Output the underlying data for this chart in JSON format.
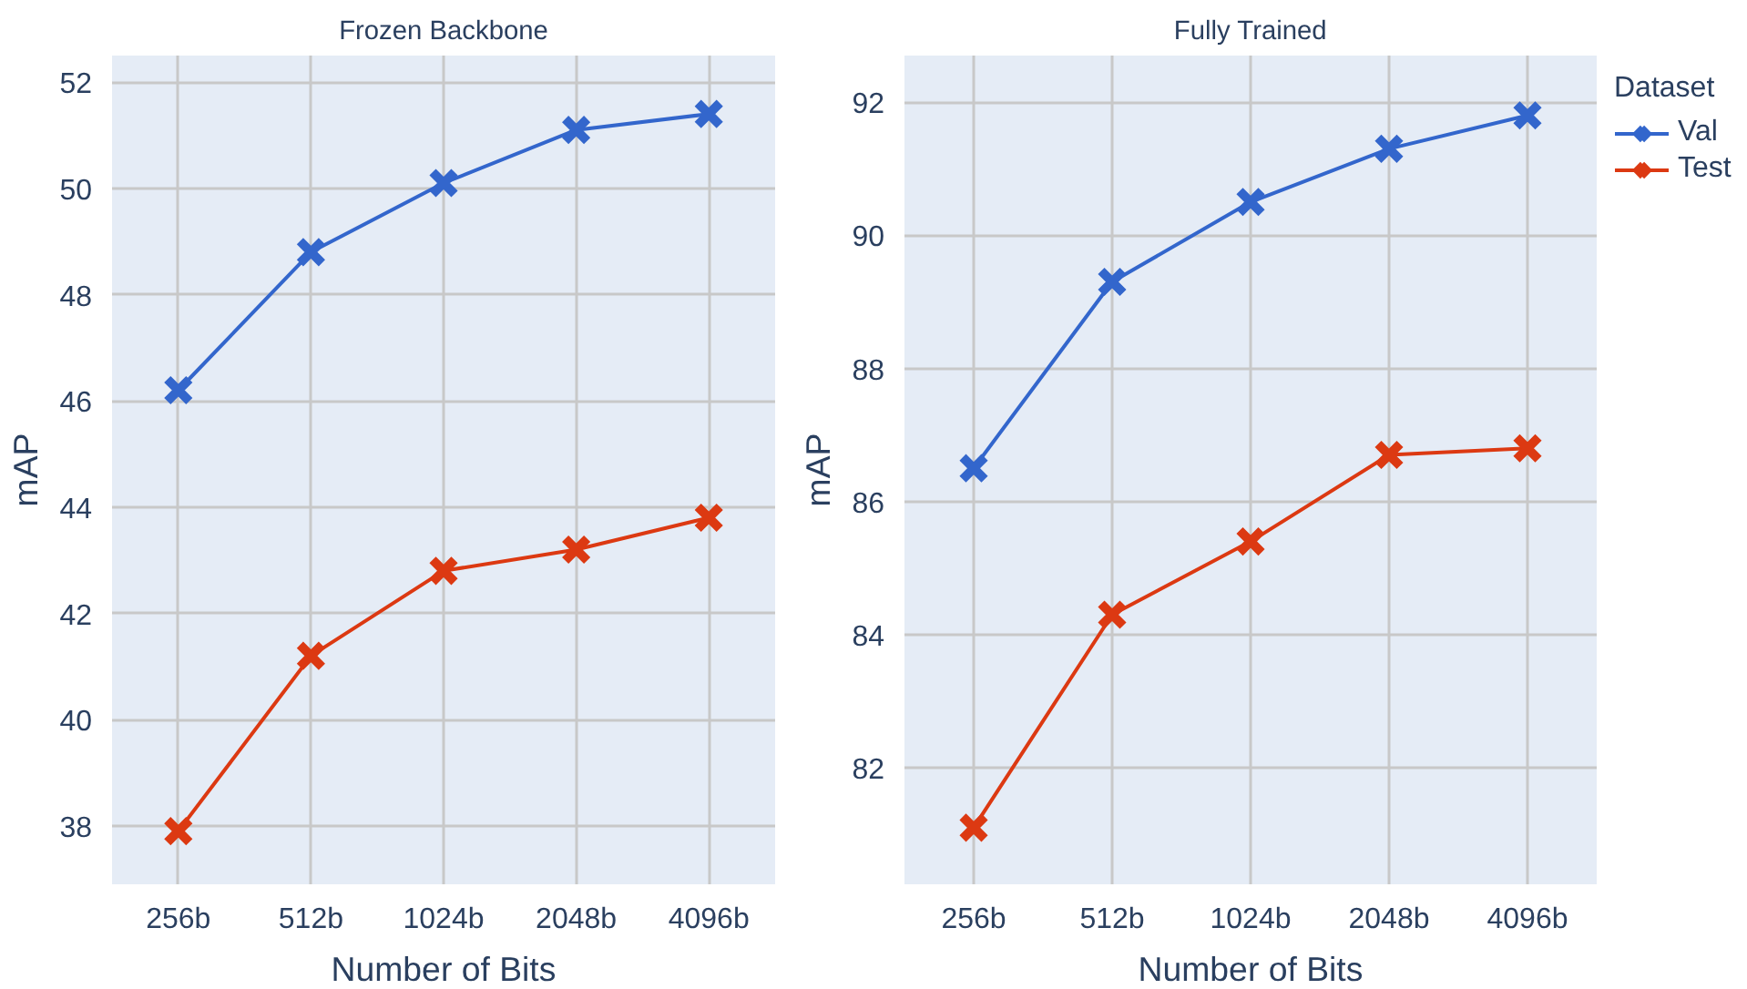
{
  "chart_data": [
    {
      "type": "line",
      "title": "Frozen Backbone",
      "xlabel": "Number of Bits",
      "ylabel": "mAP",
      "categories": [
        "256b",
        "512b",
        "1024b",
        "2048b",
        "4096b"
      ],
      "ylim": [
        36.9,
        52.5
      ],
      "yticks": [
        38,
        40,
        42,
        44,
        46,
        48,
        50,
        52
      ],
      "grid": true,
      "legend": false,
      "marker": "cross",
      "line_style": "solid",
      "series": [
        {
          "color": "#3366cc",
          "values": [
            46.2,
            48.8,
            50.1,
            51.1,
            51.4
          ]
        },
        {
          "color": "#dc3912",
          "values": [
            37.9,
            41.2,
            42.8,
            43.2,
            43.8
          ]
        }
      ]
    },
    {
      "type": "line",
      "title": "Fully Trained",
      "xlabel": "Number of Bits",
      "ylabel": "mAP",
      "categories": [
        "256b",
        "512b",
        "1024b",
        "2048b",
        "4096b"
      ],
      "ylim": [
        80.25,
        92.7
      ],
      "yticks": [
        82,
        84,
        86,
        88,
        90,
        92
      ],
      "grid": true,
      "legend": "right",
      "legend_title": "Dataset",
      "marker": "cross",
      "line_style": "solid",
      "series": [
        {
          "name": "Val",
          "color": "#3366cc",
          "values": [
            86.5,
            89.3,
            90.5,
            91.3,
            91.8
          ]
        },
        {
          "name": "Test",
          "color": "#dc3912",
          "values": [
            81.1,
            84.3,
            85.4,
            86.7,
            86.8
          ]
        }
      ]
    }
  ]
}
